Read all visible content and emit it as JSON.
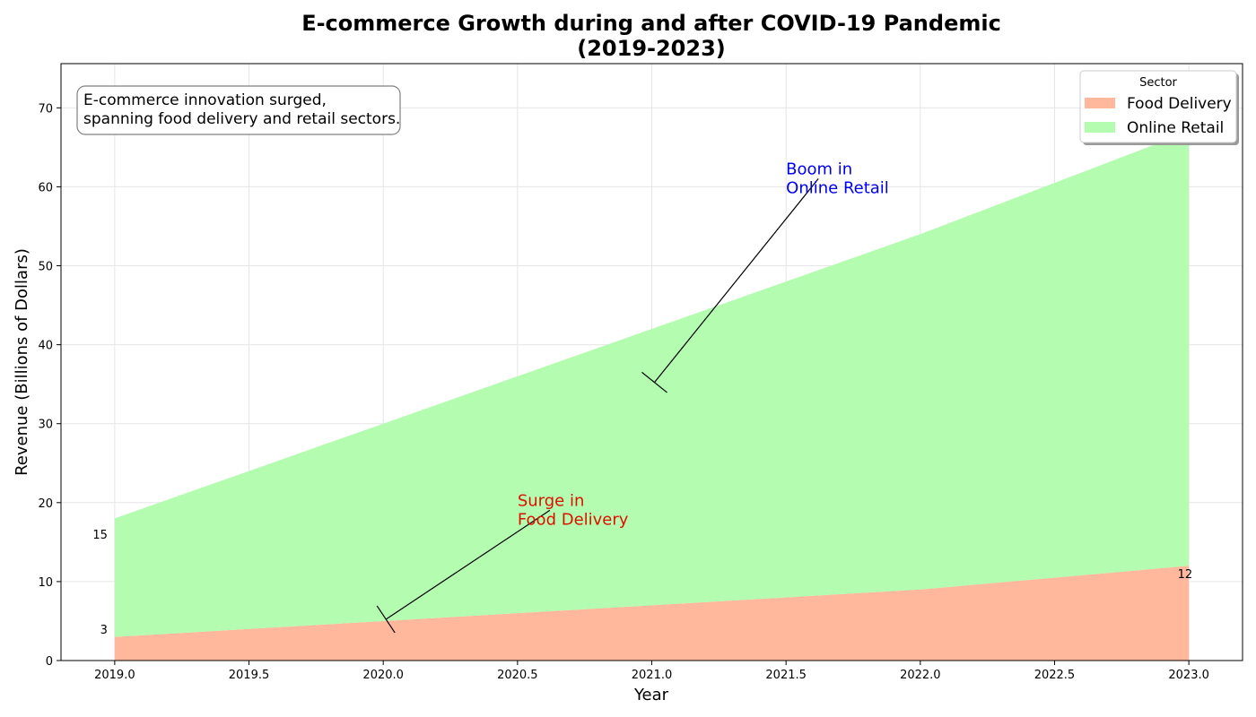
{
  "chart_data": {
    "type": "area",
    "stacked": true,
    "title": "E-commerce Growth during and after COVID-19 Pandemic",
    "subtitle": "(2019-2023)",
    "xlabel": "Year",
    "ylabel": "Revenue (Billions of Dollars)",
    "x": [
      2019,
      2020,
      2021,
      2022,
      2023
    ],
    "xlim": [
      2018.8,
      2023.2
    ],
    "ylim": [
      0,
      75.6
    ],
    "xticks": [
      "2019.0",
      "2019.5",
      "2020.0",
      "2020.5",
      "2021.0",
      "2021.5",
      "2022.0",
      "2022.5",
      "2023.0"
    ],
    "xtick_values": [
      2019.0,
      2019.5,
      2020.0,
      2020.5,
      2021.0,
      2021.5,
      2022.0,
      2022.5,
      2023.0
    ],
    "yticks": [
      "0",
      "10",
      "20",
      "30",
      "40",
      "50",
      "60",
      "70"
    ],
    "ytick_values": [
      0,
      10,
      20,
      30,
      40,
      50,
      60,
      70
    ],
    "grid": true,
    "series": [
      {
        "name": "Food Delivery",
        "values": [
          3,
          5,
          7,
          9,
          12
        ],
        "color": "#ffb89b"
      },
      {
        "name": "Online Retail",
        "values": [
          15,
          25,
          35,
          45,
          55
        ],
        "color": "#b3fcb0"
      }
    ],
    "legend": {
      "title": "Sector",
      "position": "top-right"
    },
    "data_labels": [
      {
        "text": "15",
        "x": 2019,
        "y": 16
      },
      {
        "text": "3",
        "x": 2019,
        "y": 4
      },
      {
        "text": "12",
        "x": 2023,
        "y": 11
      }
    ],
    "note": {
      "lines": [
        "E-commerce innovation surged,",
        "spanning food delivery and retail sectors."
      ],
      "position": "top-left"
    },
    "annotations": [
      {
        "lines": [
          "Surge in",
          "Food Delivery"
        ],
        "text_x": 2020.5,
        "text_y": 18,
        "target_x": 2020,
        "target_y": 5,
        "color": "#dd1100"
      },
      {
        "lines": [
          "Boom in",
          "Online Retail"
        ],
        "text_x": 2021.5,
        "text_y": 60,
        "target_x": 2021,
        "target_y": 35,
        "color": "#0000ee"
      }
    ]
  }
}
